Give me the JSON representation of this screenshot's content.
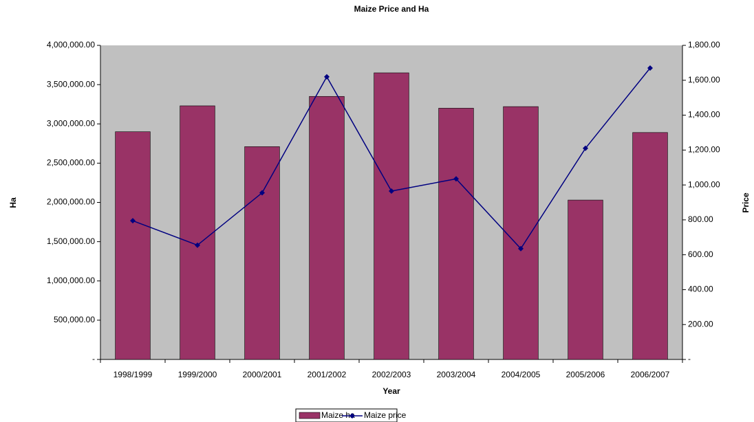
{
  "chart_data": {
    "type": "bar-line",
    "title": "Maize Price and Ha",
    "x_label": "Year",
    "y_label": "Ha",
    "y2_label": "Price",
    "categories": [
      "1998/1999",
      "1999/2000",
      "2000/2001",
      "2001/2002",
      "2002/2003",
      "2003/2004",
      "2004/2005",
      "2005/2006",
      "2006/2007"
    ],
    "series": [
      {
        "name": "Maize ha",
        "type": "bar",
        "color": "#993366",
        "values": [
          2900000,
          3230000,
          2710000,
          3350000,
          3650000,
          3200000,
          3220000,
          2030000,
          2890000
        ]
      },
      {
        "name": "Maize price",
        "type": "line",
        "axis": "y2",
        "color": "#000080",
        "values": [
          795,
          655,
          955,
          1620,
          965,
          1035,
          635,
          1210,
          1670
        ]
      }
    ],
    "ylim": [
      0,
      4000000
    ],
    "yticks": [
      {
        "value": 0,
        "label": "-"
      },
      {
        "value": 500000,
        "label": "500,000.00"
      },
      {
        "value": 1000000,
        "label": "1,000,000.00"
      },
      {
        "value": 1500000,
        "label": "1,500,000.00"
      },
      {
        "value": 2000000,
        "label": "2,000,000.00"
      },
      {
        "value": 2500000,
        "label": "2,500,000.00"
      },
      {
        "value": 3000000,
        "label": "3,000,000.00"
      },
      {
        "value": 3500000,
        "label": "3,500,000.00"
      },
      {
        "value": 4000000,
        "label": "4,000,000.00"
      }
    ],
    "y2lim": [
      0,
      1800
    ],
    "y2ticks": [
      {
        "value": 0,
        "label": "-"
      },
      {
        "value": 200,
        "label": "200.00"
      },
      {
        "value": 400,
        "label": "400.00"
      },
      {
        "value": 600,
        "label": "600.00"
      },
      {
        "value": 800,
        "label": "800.00"
      },
      {
        "value": 1000,
        "label": "1,000.00"
      },
      {
        "value": 1200,
        "label": "1,200.00"
      },
      {
        "value": 1400,
        "label": "1,400.00"
      },
      {
        "value": 1600,
        "label": "1,600.00"
      },
      {
        "value": 1800,
        "label": "1,800.00"
      }
    ],
    "grid": false,
    "plot_background": "#c0c0c0",
    "legend": "bottom"
  }
}
